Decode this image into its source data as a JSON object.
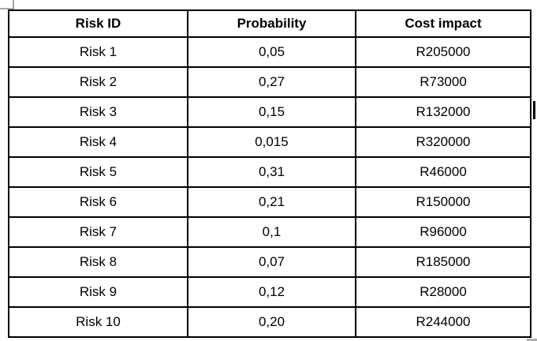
{
  "colors": {
    "background": "#ffffff",
    "table_border": "#000000",
    "text": "#000000",
    "handle_gray": "#a6a6a6"
  },
  "table": {
    "headers": [
      "Risk ID",
      "Probability",
      "Cost impact"
    ],
    "rows": [
      [
        "Risk 1",
        "0,05",
        "R205000"
      ],
      [
        "Risk 2",
        "0,27",
        "R73000"
      ],
      [
        "Risk 3",
        "0,15",
        "R132000"
      ],
      [
        "Risk 4",
        "0,015",
        "R320000"
      ],
      [
        "Risk 5",
        "0,31",
        "R46000"
      ],
      [
        "Risk 6",
        "0,21",
        "R150000"
      ],
      [
        "Risk 7",
        "0,1",
        "R96000"
      ],
      [
        "Risk 8",
        "0,07",
        "R185000"
      ],
      [
        "Risk 9",
        "0,12",
        "R28000"
      ],
      [
        "Risk 10",
        "0,20",
        "R244000"
      ]
    ]
  }
}
